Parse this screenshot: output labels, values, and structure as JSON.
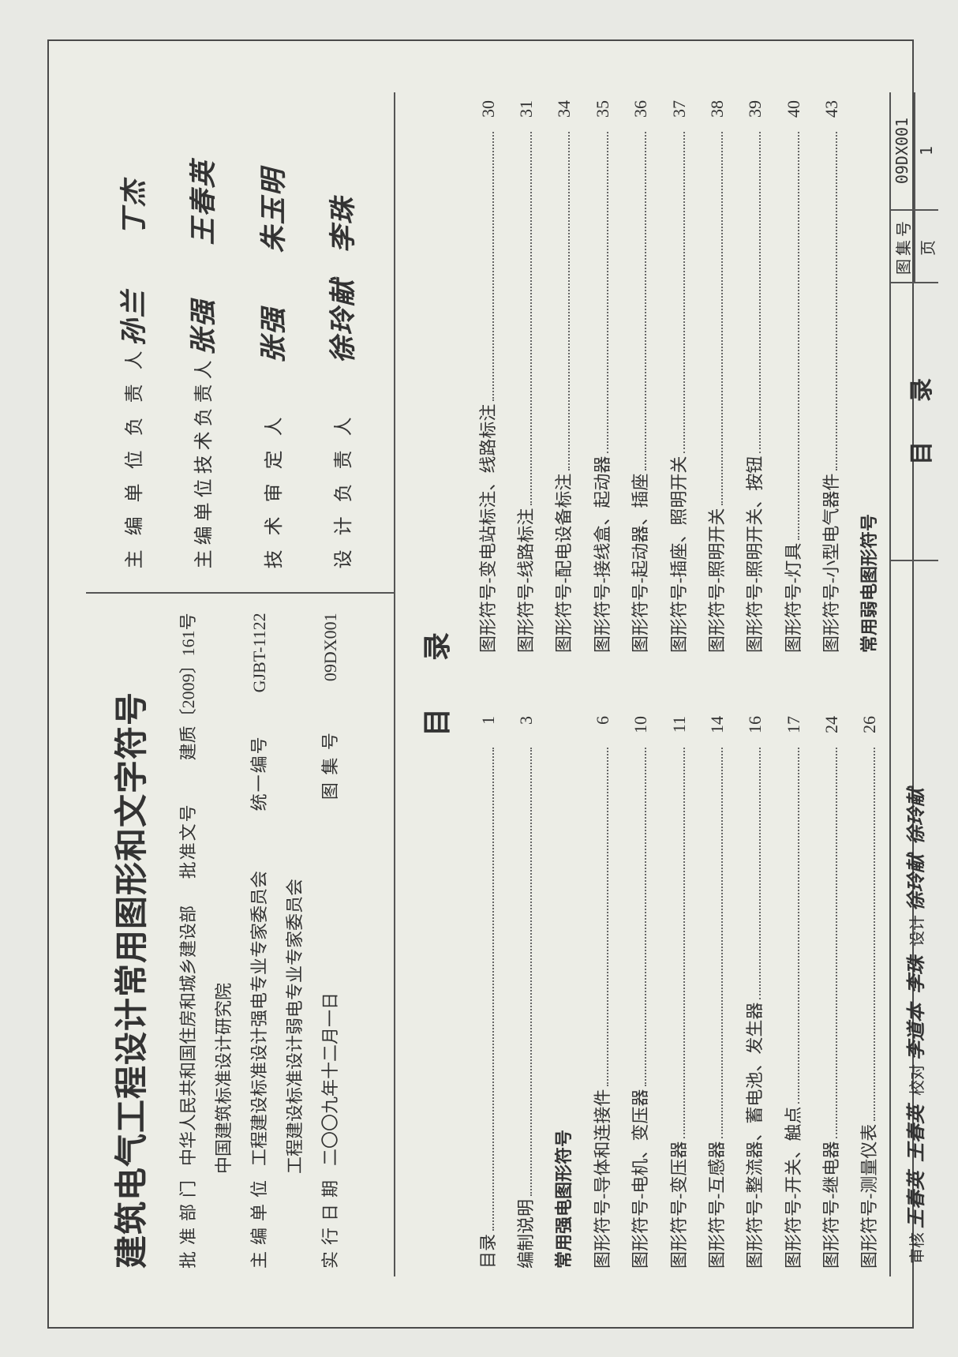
{
  "title": "建筑电气工程设计常用图形和文字符号",
  "header_left": {
    "rows": [
      {
        "label": "批准部门",
        "value": "中华人民共和国住房和城乡建设部",
        "label2": "批准文号",
        "value2": "建质〔2009〕161号"
      },
      {
        "label": "",
        "value": "中国建筑标准设计研究院",
        "label2": "",
        "value2": ""
      },
      {
        "label": "主编单位",
        "value": "工程建设标准设计强电专业专家委员会",
        "label2": "统一编号",
        "value2": "GJBT-1122"
      },
      {
        "label": "",
        "value": "工程建设标准设计弱电专业专家委员会",
        "label2": "",
        "value2": ""
      },
      {
        "label": "实行日期",
        "value": "二〇〇九年十二月一日",
        "label2": "图 集 号",
        "value2": "09DX001"
      }
    ]
  },
  "header_right": {
    "rows": [
      {
        "label": "主 编 单 位 负 责 人",
        "signs": [
          "孙兰",
          "丁杰"
        ]
      },
      {
        "label": "主编单位技术负责人",
        "signs": [
          "张强",
          "王春英"
        ]
      },
      {
        "label": "技 术 审 定 人",
        "signs": [
          "张强",
          "朱玉明"
        ]
      },
      {
        "label": "设 计 负 责 人",
        "signs": [
          "徐玲献",
          "李珠"
        ]
      }
    ]
  },
  "toc": {
    "heading": "目录",
    "left": [
      {
        "label": "目录",
        "page": "1"
      },
      {
        "label": "编制说明",
        "page": "3"
      },
      {
        "label": "常用强电图形符号",
        "page": "",
        "heading": true
      },
      {
        "label": "图形符号-导体和连接件",
        "page": "6"
      },
      {
        "label": "图形符号-电机、变压器",
        "page": "10"
      },
      {
        "label": "图形符号-变压器",
        "page": "11"
      },
      {
        "label": "图形符号-互感器",
        "page": "14"
      },
      {
        "label": "图形符号-整流器、蓄电池、发生器",
        "page": "16"
      },
      {
        "label": "图形符号-开关、触点",
        "page": "17"
      },
      {
        "label": "图形符号-继电器",
        "page": "24"
      },
      {
        "label": "图形符号-测量仪表",
        "page": "26"
      }
    ],
    "right": [
      {
        "label": "图形符号-变电站标注、线路标注",
        "page": "30"
      },
      {
        "label": "图形符号-线路标注",
        "page": "31"
      },
      {
        "label": "图形符号-配电设备标注",
        "page": "34"
      },
      {
        "label": "图形符号-接线盒、起动器",
        "page": "35"
      },
      {
        "label": "图形符号-起动器、插座",
        "page": "36"
      },
      {
        "label": "图形符号-插座、照明开关",
        "page": "37"
      },
      {
        "label": "图形符号-照明开关",
        "page": "38"
      },
      {
        "label": "图形符号-照明开关、按钮",
        "page": "39"
      },
      {
        "label": "图形符号-灯具",
        "page": "40"
      },
      {
        "label": "图形符号-小型电气器件",
        "page": "43"
      },
      {
        "label": "常用弱电图形符号",
        "page": "",
        "heading": true
      }
    ]
  },
  "footer": {
    "review": [
      {
        "label": "审核",
        "sign": "王春英"
      },
      {
        "label": "",
        "sign": "王春英"
      },
      {
        "label": "校对",
        "sign": "李道本"
      },
      {
        "label": "",
        "sign": "李珠"
      },
      {
        "label": "设计",
        "sign": "徐玲献"
      },
      {
        "label": "",
        "sign": "徐玲献"
      }
    ],
    "mid": "目录",
    "set_no_label": "图集号",
    "set_no": "09DX001",
    "page_label": "页",
    "page": "1"
  },
  "colors": {
    "border": "#4a4a4a",
    "bg": "#ecede6",
    "text": "#333333",
    "dot": "#666666"
  }
}
